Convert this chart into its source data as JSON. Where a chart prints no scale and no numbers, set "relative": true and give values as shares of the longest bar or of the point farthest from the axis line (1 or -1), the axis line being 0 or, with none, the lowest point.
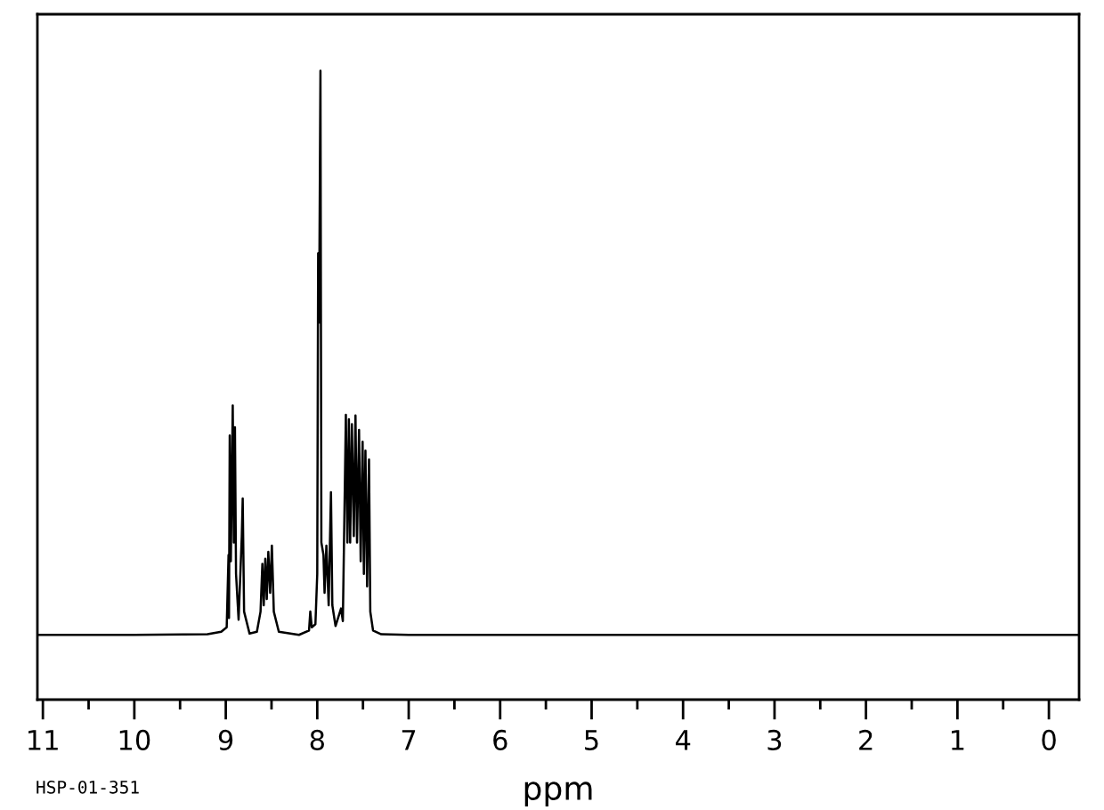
{
  "chart_data": {
    "type": "line",
    "relative": true,
    "xlabel": "ppm",
    "annotations": [
      "HSP-01-351"
    ],
    "xlim": [
      11.06,
      -0.33
    ],
    "xticks": [
      11,
      {
        "value": 10.5,
        "label": null
      },
      10,
      {
        "value": 9.5,
        "label": null
      },
      9,
      {
        "value": 8.5,
        "label": null
      },
      8,
      {
        "value": 7.5,
        "label": null
      },
      7,
      {
        "value": 6.5,
        "label": null
      },
      6,
      {
        "value": 5.5,
        "label": null
      },
      5,
      {
        "value": 4.5,
        "label": null
      },
      4,
      {
        "value": 3.5,
        "label": null
      },
      3,
      {
        "value": 2.5,
        "label": null
      },
      2,
      {
        "value": 1.5,
        "label": null
      },
      1,
      {
        "value": 0.5,
        "label": null
      },
      0
    ],
    "marker": "none",
    "line_style": "solid",
    "series": [
      {
        "color": "#000000",
        "x": [
          11.06,
          10.0,
          9.2,
          9.05,
          8.99,
          8.97,
          8.965,
          8.957,
          8.945,
          8.924,
          8.912,
          8.9,
          8.888,
          8.86,
          8.825,
          8.815,
          8.8,
          8.74,
          8.66,
          8.62,
          8.6,
          8.585,
          8.568,
          8.552,
          8.535,
          8.515,
          8.496,
          8.475,
          8.42,
          8.2,
          8.09,
          8.076,
          8.06,
          8.02,
          8.0,
          7.99,
          7.98,
          7.965,
          7.955,
          7.932,
          7.92,
          7.9,
          7.875,
          7.85,
          7.835,
          7.8,
          7.74,
          7.72,
          7.687,
          7.67,
          7.654,
          7.64,
          7.621,
          7.6,
          7.582,
          7.565,
          7.543,
          7.525,
          7.504,
          7.49,
          7.473,
          7.455,
          7.434,
          7.42,
          7.39,
          7.3,
          7.0,
          5.0,
          2.0,
          -0.33
        ],
        "values": [
          0.103,
          0.103,
          0.104,
          0.108,
          0.115,
          0.23,
          0.13,
          0.42,
          0.22,
          0.468,
          0.25,
          0.433,
          0.2,
          0.127,
          0.26,
          0.32,
          0.14,
          0.105,
          0.108,
          0.14,
          0.216,
          0.15,
          0.224,
          0.16,
          0.235,
          0.17,
          0.245,
          0.14,
          0.108,
          0.103,
          0.11,
          0.14,
          0.115,
          0.12,
          0.2,
          0.71,
          0.6,
          1.0,
          0.25,
          0.23,
          0.17,
          0.245,
          0.15,
          0.33,
          0.15,
          0.117,
          0.145,
          0.125,
          0.453,
          0.25,
          0.446,
          0.25,
          0.438,
          0.26,
          0.452,
          0.25,
          0.429,
          0.22,
          0.41,
          0.2,
          0.396,
          0.18,
          0.382,
          0.14,
          0.11,
          0.104,
          0.103,
          0.103,
          0.103,
          0.103
        ]
      }
    ]
  }
}
